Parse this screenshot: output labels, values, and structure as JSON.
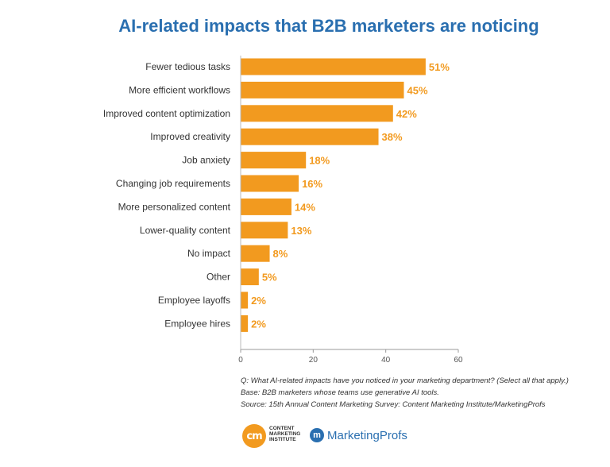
{
  "chart_data": {
    "type": "bar",
    "orientation": "horizontal",
    "title": "AI-related impacts that B2B marketers are noticing",
    "categories": [
      "Fewer tedious tasks",
      "More efficient workflows",
      "Improved content optimization",
      "Improved creativity",
      "Job anxiety",
      "Changing job requirements",
      "More personalized content",
      "Lower-quality content",
      "No impact",
      "Other",
      "Employee layoffs",
      "Employee hires"
    ],
    "values": [
      51,
      45,
      42,
      38,
      18,
      16,
      14,
      13,
      8,
      5,
      2,
      2
    ],
    "data_labels": [
      "51%",
      "45%",
      "42%",
      "38%",
      "18%",
      "16%",
      "14%",
      "13%",
      "8%",
      "5%",
      "2%",
      "2%"
    ],
    "xlim": [
      0,
      60
    ],
    "xticks": [
      0,
      20,
      40,
      60
    ],
    "xtick_labels": [
      "0",
      "20",
      "40",
      "60"
    ],
    "xlabel": "",
    "ylabel": "",
    "grid": false,
    "legend": "none",
    "bar_color": "#f29a1f",
    "label_color": "#f29a1f",
    "title_color": "#2a6fb0"
  },
  "notes": {
    "question": "Q: What AI-related impacts have you noticed in your marketing department? (Select all that apply.)",
    "base": "Base: B2B marketers whose teams use generative AI tools.",
    "source": "Source: 15th Annual Content Marketing Survey: Content Marketing Institute/MarketingProfs"
  },
  "logos": {
    "cmi_mark": "cm",
    "cmi_text_1": "CONTENT",
    "cmi_text_2": "MARKETING",
    "cmi_text_3": "INSTITUTE",
    "mp_mark": "m",
    "mp_text": "MarketingProfs"
  }
}
